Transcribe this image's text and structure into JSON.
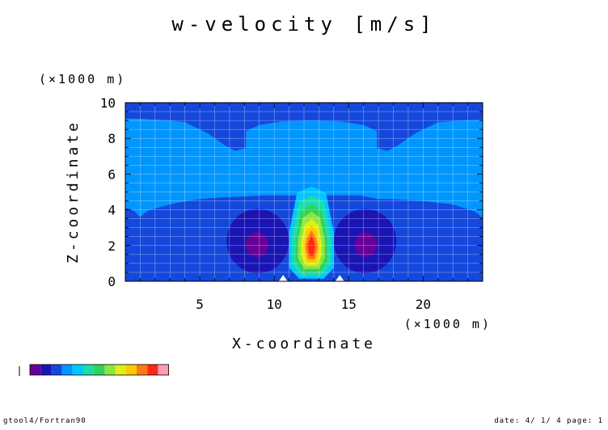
{
  "chart_data": {
    "type": "heatmap",
    "title": "w-velocity [m/s]",
    "xlabel": "X-coordinate",
    "ylabel": "Z-coordinate",
    "x_unit": "(×1000 m)",
    "y_unit": "(×1000 m)",
    "xlim": [
      0,
      24
    ],
    "ylim": [
      0,
      10
    ],
    "x_ticks": [
      5,
      10,
      15,
      20
    ],
    "y_ticks": [
      0,
      2,
      4,
      6,
      8,
      10
    ],
    "grid": true,
    "colorbar_levels": [
      "#68009a",
      "#1a14b4",
      "#1448dc",
      "#0096ff",
      "#00c8ff",
      "#1edcaa",
      "#2ed25a",
      "#8ce63c",
      "#dcf016",
      "#ffc800",
      "#ff7814",
      "#ff2814",
      "#ff9cb4"
    ],
    "regions": [
      {
        "level": 2,
        "description": "upper band z 9.1-10"
      },
      {
        "level": 3,
        "description": "middle band z 4.5-9"
      },
      {
        "level": 2,
        "description": "lower band z 0-4.5"
      },
      {
        "level": 1,
        "description": "downdraft lobes centered x 9 and x 16, z 2.2"
      },
      {
        "level": 0,
        "description": "downdraft cores at x 8.8 and x 16.2, z 2.1"
      },
      {
        "level": 12,
        "description": "updraft core at x 12.5, z 2.0"
      }
    ]
  },
  "footer": {
    "left": "gtool4/Fortran90",
    "right": "date: 4/ 1/ 4 page: 1"
  }
}
